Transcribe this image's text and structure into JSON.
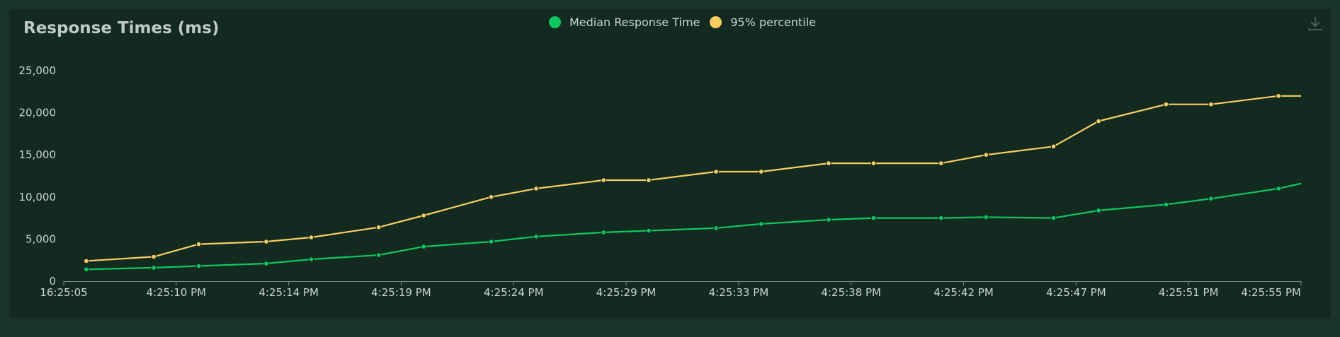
{
  "title": "Response Times (ms)",
  "download_icon": "download-icon",
  "legend": [
    {
      "label": "Median Response Time",
      "color": "#10c65f"
    },
    {
      "label": "95% percentile",
      "color": "#f8ce63"
    }
  ],
  "colors": {
    "background": "#1a3328",
    "panel": "#132a21",
    "axis": "#7f8c86",
    "text": "#c9d4ce",
    "median": "#10c65f",
    "p95": "#f8ce63"
  },
  "chart_data": {
    "type": "line",
    "title": "Response Times (ms)",
    "xlabel": "",
    "ylabel": "",
    "ylim": [
      0,
      25000
    ],
    "y_ticks": [
      "0",
      "5,000",
      "10,000",
      "15,000",
      "20,000",
      "25,000"
    ],
    "y_tick_values": [
      0,
      5000,
      10000,
      15000,
      20000,
      25000
    ],
    "x_tick_labels": [
      "16:25:05",
      "4:25:10 PM",
      "4:25:14 PM",
      "4:25:19 PM",
      "4:25:24 PM",
      "4:25:29 PM",
      "4:25:33 PM",
      "4:25:38 PM",
      "4:25:42 PM",
      "4:25:47 PM",
      "4:25:51 PM",
      "4:25:55 PM"
    ],
    "x_tick_times": [
      "16:25:03",
      "16:25:08",
      "16:25:13",
      "16:25:18",
      "16:25:23",
      "16:25:28",
      "16:25:33",
      "16:25:38",
      "16:25:43",
      "16:25:48",
      "16:25:53",
      "16:25:58"
    ],
    "x_range": [
      "16:25:03",
      "16:25:58"
    ],
    "legend_position": "top",
    "grid": false,
    "series": [
      {
        "name": "Median Response Time",
        "color": "#10c65f",
        "x": [
          "16:25:04",
          "16:25:07",
          "16:25:09",
          "16:25:12",
          "16:25:14",
          "16:25:17",
          "16:25:19",
          "16:25:22",
          "16:25:24",
          "16:25:27",
          "16:25:29",
          "16:25:32",
          "16:25:34",
          "16:25:37",
          "16:25:39",
          "16:25:42",
          "16:25:44",
          "16:25:47",
          "16:25:49",
          "16:25:52",
          "16:25:54",
          "16:25:57",
          "16:25:58"
        ],
        "values": [
          1400,
          1600,
          1800,
          2100,
          2600,
          3100,
          4100,
          4700,
          5300,
          5800,
          6000,
          6300,
          6800,
          7300,
          7500,
          7500,
          7600,
          7500,
          8400,
          9100,
          9800,
          11000,
          11600
        ]
      },
      {
        "name": "95% percentile",
        "color": "#f8ce63",
        "x": [
          "16:25:04",
          "16:25:07",
          "16:25:09",
          "16:25:12",
          "16:25:14",
          "16:25:17",
          "16:25:19",
          "16:25:22",
          "16:25:24",
          "16:25:27",
          "16:25:29",
          "16:25:32",
          "16:25:34",
          "16:25:37",
          "16:25:39",
          "16:25:42",
          "16:25:44",
          "16:25:47",
          "16:25:49",
          "16:25:52",
          "16:25:54",
          "16:25:57",
          "16:25:58"
        ],
        "values": [
          2400,
          2900,
          4400,
          4700,
          5200,
          6400,
          7800,
          10000,
          11000,
          12000,
          12000,
          13000,
          13000,
          14000,
          14000,
          14000,
          15000,
          16000,
          19000,
          21000,
          21000,
          22000,
          22000
        ]
      }
    ]
  }
}
